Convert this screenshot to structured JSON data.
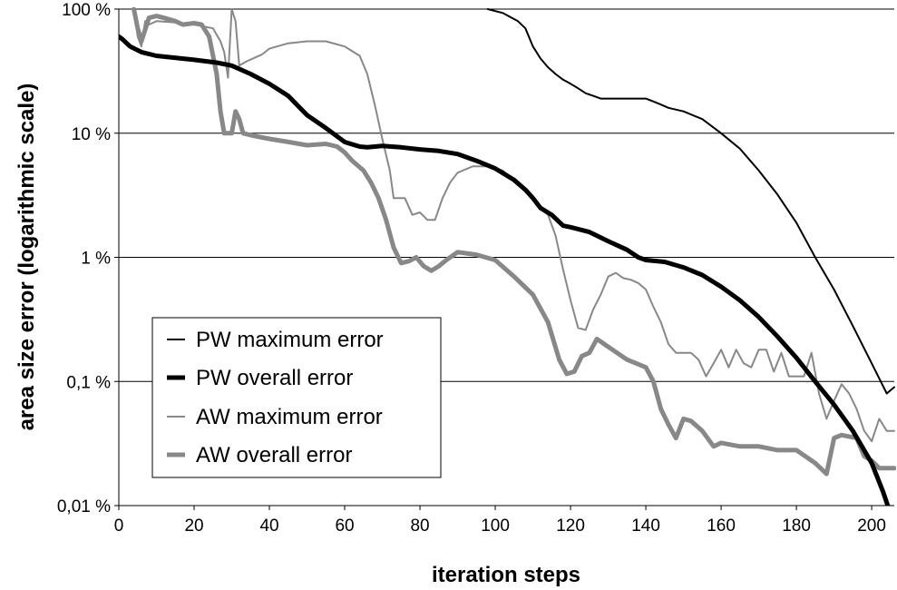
{
  "chart_data": {
    "type": "line",
    "title": "",
    "xlabel": "iteration steps",
    "ylabel": "area size error (logarithmic scale)",
    "x_scale": "linear",
    "y_scale": "log",
    "xlim": [
      0,
      206
    ],
    "ylim": [
      0.0001,
      1
    ],
    "x_ticks": [
      {
        "value": 0,
        "label": "0"
      },
      {
        "value": 20,
        "label": "20"
      },
      {
        "value": 40,
        "label": "40"
      },
      {
        "value": 60,
        "label": "60"
      },
      {
        "value": 80,
        "label": "80"
      },
      {
        "value": 100,
        "label": "100"
      },
      {
        "value": 120,
        "label": "120"
      },
      {
        "value": 140,
        "label": "140"
      },
      {
        "value": 160,
        "label": "160"
      },
      {
        "value": 180,
        "label": "180"
      },
      {
        "value": 200,
        "label": "200"
      }
    ],
    "y_ticks": [
      {
        "value": 0.0001,
        "label": "0,01 %"
      },
      {
        "value": 0.001,
        "label": "0,1 %"
      },
      {
        "value": 0.01,
        "label": "1 %"
      },
      {
        "value": 0.1,
        "label": "10 %"
      },
      {
        "value": 1,
        "label": "100 %"
      }
    ],
    "grid": "horizontal major gridlines",
    "legend_position": "bottom-left",
    "series": [
      {
        "name": "PW maximum error",
        "color": "#000000",
        "line": "thin",
        "points": [
          [
            98,
            1.0
          ],
          [
            102,
            0.93
          ],
          [
            106,
            0.8
          ],
          [
            108,
            0.7
          ],
          [
            110,
            0.5
          ],
          [
            112,
            0.4
          ],
          [
            114,
            0.34
          ],
          [
            116,
            0.3
          ],
          [
            118,
            0.27
          ],
          [
            120,
            0.25
          ],
          [
            122,
            0.23
          ],
          [
            124,
            0.21
          ],
          [
            126,
            0.2
          ],
          [
            128,
            0.19
          ],
          [
            130,
            0.19
          ],
          [
            140,
            0.19
          ],
          [
            142,
            0.18
          ],
          [
            144,
            0.17
          ],
          [
            146,
            0.16
          ],
          [
            150,
            0.15
          ],
          [
            155,
            0.13
          ],
          [
            160,
            0.1
          ],
          [
            165,
            0.075
          ],
          [
            170,
            0.05
          ],
          [
            175,
            0.032
          ],
          [
            180,
            0.019
          ],
          [
            185,
            0.01
          ],
          [
            190,
            0.0055
          ],
          [
            195,
            0.0028
          ],
          [
            200,
            0.0014
          ],
          [
            204,
            0.0008
          ],
          [
            206,
            0.0009
          ]
        ]
      },
      {
        "name": "PW overall error",
        "color": "#000000",
        "line": "thick",
        "points": [
          [
            0,
            0.6
          ],
          [
            1,
            0.57
          ],
          [
            3,
            0.5
          ],
          [
            6,
            0.45
          ],
          [
            10,
            0.42
          ],
          [
            20,
            0.39
          ],
          [
            26,
            0.37
          ],
          [
            30,
            0.35
          ],
          [
            35,
            0.3
          ],
          [
            40,
            0.25
          ],
          [
            45,
            0.2
          ],
          [
            50,
            0.14
          ],
          [
            55,
            0.11
          ],
          [
            60,
            0.085
          ],
          [
            64,
            0.078
          ],
          [
            66,
            0.077
          ],
          [
            70,
            0.079
          ],
          [
            75,
            0.077
          ],
          [
            80,
            0.074
          ],
          [
            85,
            0.072
          ],
          [
            90,
            0.068
          ],
          [
            95,
            0.06
          ],
          [
            100,
            0.052
          ],
          [
            105,
            0.042
          ],
          [
            108,
            0.035
          ],
          [
            110,
            0.03
          ],
          [
            112,
            0.025
          ],
          [
            115,
            0.022
          ],
          [
            118,
            0.018
          ],
          [
            120,
            0.0175
          ],
          [
            125,
            0.016
          ],
          [
            130,
            0.0135
          ],
          [
            135,
            0.0115
          ],
          [
            138,
            0.01
          ],
          [
            140,
            0.0095
          ],
          [
            145,
            0.0092
          ],
          [
            150,
            0.0083
          ],
          [
            155,
            0.0072
          ],
          [
            160,
            0.0058
          ],
          [
            165,
            0.0045
          ],
          [
            170,
            0.0033
          ],
          [
            175,
            0.0023
          ],
          [
            180,
            0.00155
          ],
          [
            185,
            0.001
          ],
          [
            190,
            0.00065
          ],
          [
            195,
            0.0004
          ],
          [
            200,
            0.00022
          ],
          [
            203,
            0.00013
          ],
          [
            206,
            7e-05
          ]
        ]
      },
      {
        "name": "AW maximum error",
        "color": "#888888",
        "line": "thin",
        "points": [
          [
            4,
            1.0
          ],
          [
            5,
            0.6
          ],
          [
            6,
            0.5
          ],
          [
            7,
            0.8
          ],
          [
            8,
            0.75
          ],
          [
            10,
            0.8
          ],
          [
            15,
            0.78
          ],
          [
            20,
            0.75
          ],
          [
            25,
            0.7
          ],
          [
            27,
            0.55
          ],
          [
            28,
            0.45
          ],
          [
            29,
            0.28
          ],
          [
            30,
            1.0
          ],
          [
            31,
            0.8
          ],
          [
            32,
            0.35
          ],
          [
            34,
            0.38
          ],
          [
            38,
            0.43
          ],
          [
            40,
            0.48
          ],
          [
            45,
            0.53
          ],
          [
            50,
            0.55
          ],
          [
            55,
            0.55
          ],
          [
            60,
            0.5
          ],
          [
            64,
            0.42
          ],
          [
            66,
            0.3
          ],
          [
            68,
            0.17
          ],
          [
            70,
            0.09
          ],
          [
            72,
            0.05
          ],
          [
            73,
            0.03
          ],
          [
            76,
            0.03
          ],
          [
            78,
            0.022
          ],
          [
            80,
            0.023
          ],
          [
            82,
            0.02
          ],
          [
            84,
            0.02
          ],
          [
            86,
            0.03
          ],
          [
            88,
            0.04
          ],
          [
            90,
            0.048
          ],
          [
            94,
            0.054
          ],
          [
            98,
            0.054
          ],
          [
            102,
            0.05
          ],
          [
            106,
            0.04
          ],
          [
            110,
            0.03
          ],
          [
            114,
            0.022
          ],
          [
            116,
            0.015
          ],
          [
            118,
            0.008
          ],
          [
            120,
            0.0045
          ],
          [
            122,
            0.0027
          ],
          [
            124,
            0.0026
          ],
          [
            126,
            0.0038
          ],
          [
            128,
            0.005
          ],
          [
            130,
            0.007
          ],
          [
            132,
            0.0075
          ],
          [
            134,
            0.0068
          ],
          [
            136,
            0.0066
          ],
          [
            138,
            0.0062
          ],
          [
            140,
            0.0055
          ],
          [
            142,
            0.004
          ],
          [
            144,
            0.003
          ],
          [
            146,
            0.002
          ],
          [
            148,
            0.0017
          ],
          [
            150,
            0.0017
          ],
          [
            152,
            0.0017
          ],
          [
            154,
            0.0015
          ],
          [
            156,
            0.0011
          ],
          [
            158,
            0.0014
          ],
          [
            160,
            0.0018
          ],
          [
            162,
            0.0013
          ],
          [
            164,
            0.0018
          ],
          [
            166,
            0.0014
          ],
          [
            168,
            0.0013
          ],
          [
            170,
            0.0018
          ],
          [
            172,
            0.0018
          ],
          [
            174,
            0.0012
          ],
          [
            176,
            0.0017
          ],
          [
            178,
            0.0011
          ],
          [
            180,
            0.0011
          ],
          [
            182,
            0.0011
          ],
          [
            184,
            0.0017
          ],
          [
            186,
            0.0008
          ],
          [
            188,
            0.0005
          ],
          [
            190,
            0.0007
          ],
          [
            192,
            0.00095
          ],
          [
            194,
            0.0008
          ],
          [
            196,
            0.0006
          ],
          [
            198,
            0.0004
          ],
          [
            200,
            0.00033
          ],
          [
            202,
            0.0005
          ],
          [
            204,
            0.0004
          ],
          [
            206,
            0.0004
          ]
        ]
      },
      {
        "name": "AW overall error",
        "color": "#888888",
        "line": "thick",
        "points": [
          [
            4,
            1.0
          ],
          [
            5,
            0.7
          ],
          [
            6,
            0.55
          ],
          [
            8,
            0.85
          ],
          [
            10,
            0.88
          ],
          [
            12,
            0.85
          ],
          [
            15,
            0.8
          ],
          [
            17,
            0.75
          ],
          [
            20,
            0.77
          ],
          [
            22,
            0.75
          ],
          [
            24,
            0.6
          ],
          [
            26,
            0.3
          ],
          [
            27,
            0.15
          ],
          [
            28,
            0.1
          ],
          [
            30,
            0.1
          ],
          [
            31,
            0.15
          ],
          [
            32,
            0.13
          ],
          [
            33,
            0.1
          ],
          [
            36,
            0.095
          ],
          [
            40,
            0.09
          ],
          [
            45,
            0.085
          ],
          [
            50,
            0.08
          ],
          [
            55,
            0.082
          ],
          [
            58,
            0.078
          ],
          [
            60,
            0.07
          ],
          [
            62,
            0.06
          ],
          [
            65,
            0.05
          ],
          [
            67,
            0.04
          ],
          [
            69,
            0.03
          ],
          [
            71,
            0.02
          ],
          [
            73,
            0.012
          ],
          [
            75,
            0.009
          ],
          [
            77,
            0.0093
          ],
          [
            79,
            0.01
          ],
          [
            81,
            0.0085
          ],
          [
            83,
            0.0078
          ],
          [
            85,
            0.0085
          ],
          [
            87,
            0.0095
          ],
          [
            90,
            0.011
          ],
          [
            95,
            0.0105
          ],
          [
            100,
            0.0095
          ],
          [
            105,
            0.007
          ],
          [
            110,
            0.005
          ],
          [
            114,
            0.003
          ],
          [
            117,
            0.0015
          ],
          [
            119,
            0.00115
          ],
          [
            121,
            0.0012
          ],
          [
            123,
            0.0016
          ],
          [
            125,
            0.0017
          ],
          [
            127,
            0.0022
          ],
          [
            130,
            0.0019
          ],
          [
            135,
            0.0015
          ],
          [
            140,
            0.0013
          ],
          [
            142,
            0.001
          ],
          [
            144,
            0.0006
          ],
          [
            146,
            0.00045
          ],
          [
            148,
            0.00035
          ],
          [
            150,
            0.0005
          ],
          [
            152,
            0.00048
          ],
          [
            155,
            0.0004
          ],
          [
            158,
            0.0003
          ],
          [
            160,
            0.00032
          ],
          [
            165,
            0.0003
          ],
          [
            170,
            0.0003
          ],
          [
            175,
            0.00028
          ],
          [
            180,
            0.00028
          ],
          [
            185,
            0.00022
          ],
          [
            188,
            0.00018
          ],
          [
            190,
            0.00035
          ],
          [
            192,
            0.00037
          ],
          [
            196,
            0.00035
          ],
          [
            198,
            0.00025
          ],
          [
            200,
            0.00023
          ],
          [
            202,
            0.0002
          ],
          [
            206,
            0.0002
          ]
        ]
      }
    ]
  }
}
